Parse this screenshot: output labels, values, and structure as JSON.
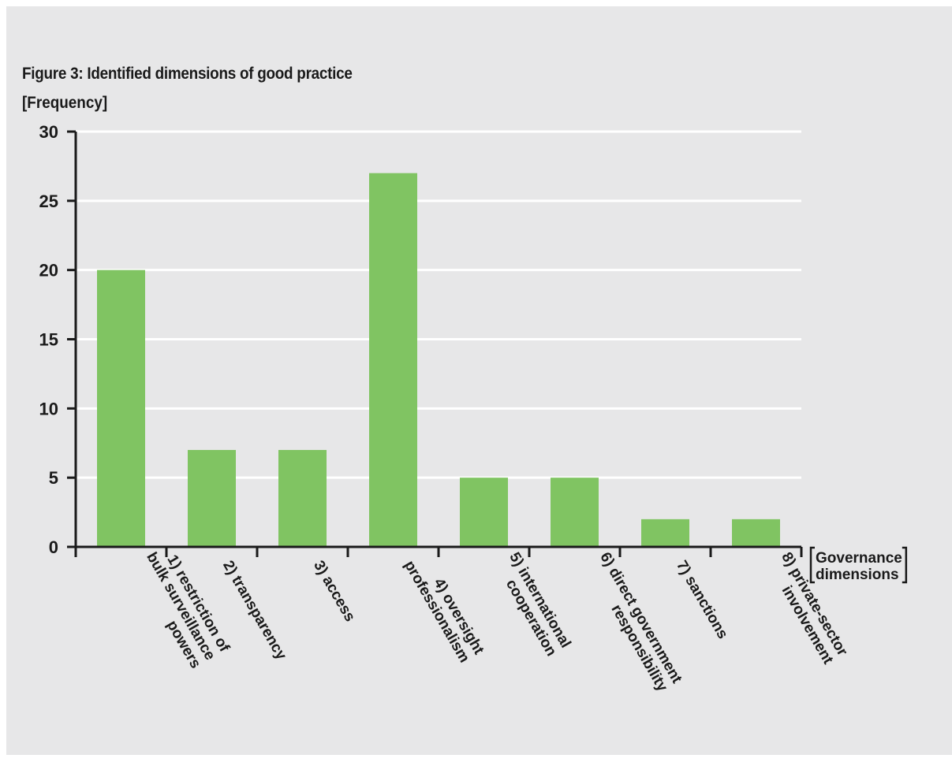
{
  "chart_data": {
    "type": "bar",
    "title": "Figure 3: Identified dimensions of good practice",
    "ylabel": "[Frequency]",
    "xlabel_lines": [
      "Governance",
      "dimensions"
    ],
    "categories": [
      [
        "1) restriction of",
        "bulk surveillance",
        "powers"
      ],
      [
        "2) transparency"
      ],
      [
        "3) access"
      ],
      [
        "4) oversight",
        "professionalism"
      ],
      [
        "5) international",
        "cooperation"
      ],
      [
        "6) direct government",
        "responsibility"
      ],
      [
        "7) sanctions"
      ],
      [
        "8) private-sector",
        "involvement"
      ]
    ],
    "values": [
      20,
      7,
      7,
      27,
      5,
      5,
      2,
      2
    ],
    "ylim": [
      0,
      30
    ],
    "yticks": [
      0,
      5,
      10,
      15,
      20,
      25,
      30
    ],
    "grid": true,
    "bar_color": "#80c462",
    "axis_color": "#1a1a1a",
    "grid_color": "#ffffff"
  }
}
